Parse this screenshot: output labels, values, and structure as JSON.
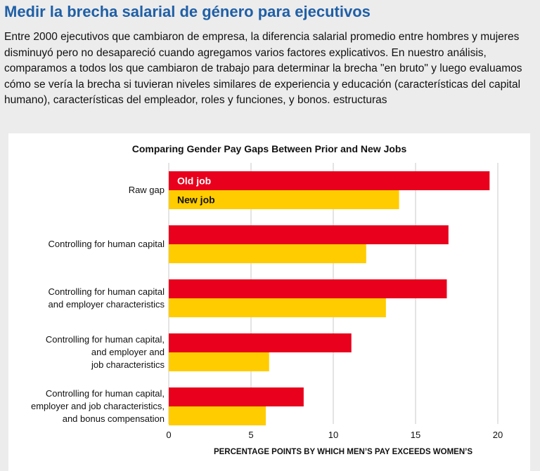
{
  "header": {
    "title": "Medir la brecha salarial de género para ejecutivos",
    "intro": "Entre 2000 ejecutivos que cambiaron de empresa, la diferencia salarial promedio entre hombres y mujeres disminuyó pero no desapareció cuando agregamos varios factores explicativos. En nuestro análisis, comparamos a todos los que cambiaron de trabajo para determinar la brecha \"en bruto\" y luego evaluamos cómo se vería la brecha si tuvieran niveles similares de experiencia y educación (características del capital humano), características del empleador, roles y funciones, y bonos. estructuras"
  },
  "chart_data": {
    "type": "bar",
    "orientation": "horizontal",
    "title": "Comparing Gender Pay Gaps Between Prior and New Jobs",
    "xlabel": "PERCENTAGE POINTS BY WHICH MEN’S PAY EXCEEDS WOMEN’S",
    "xlim": [
      0,
      20
    ],
    "xticks": [
      0,
      5,
      10,
      15,
      20
    ],
    "grid": true,
    "categories": [
      [
        "Raw gap"
      ],
      [
        "Controlling for human capital"
      ],
      [
        "Controlling for human capital",
        "and employer characteristics"
      ],
      [
        "Controlling for human capital,",
        "and employer and",
        "job characteristics"
      ],
      [
        "Controlling for human capital,",
        "employer and job characteristics,",
        "and bonus compensation"
      ]
    ],
    "series": [
      {
        "name": "Old job",
        "color": "#e8001c",
        "label_color": "#ffffff",
        "values": [
          19.5,
          17.0,
          16.9,
          11.1,
          8.2
        ]
      },
      {
        "name": "New job",
        "color": "#ffcc00",
        "label_color": "#111111",
        "values": [
          14.0,
          12.0,
          13.2,
          6.1,
          5.9
        ]
      }
    ]
  }
}
